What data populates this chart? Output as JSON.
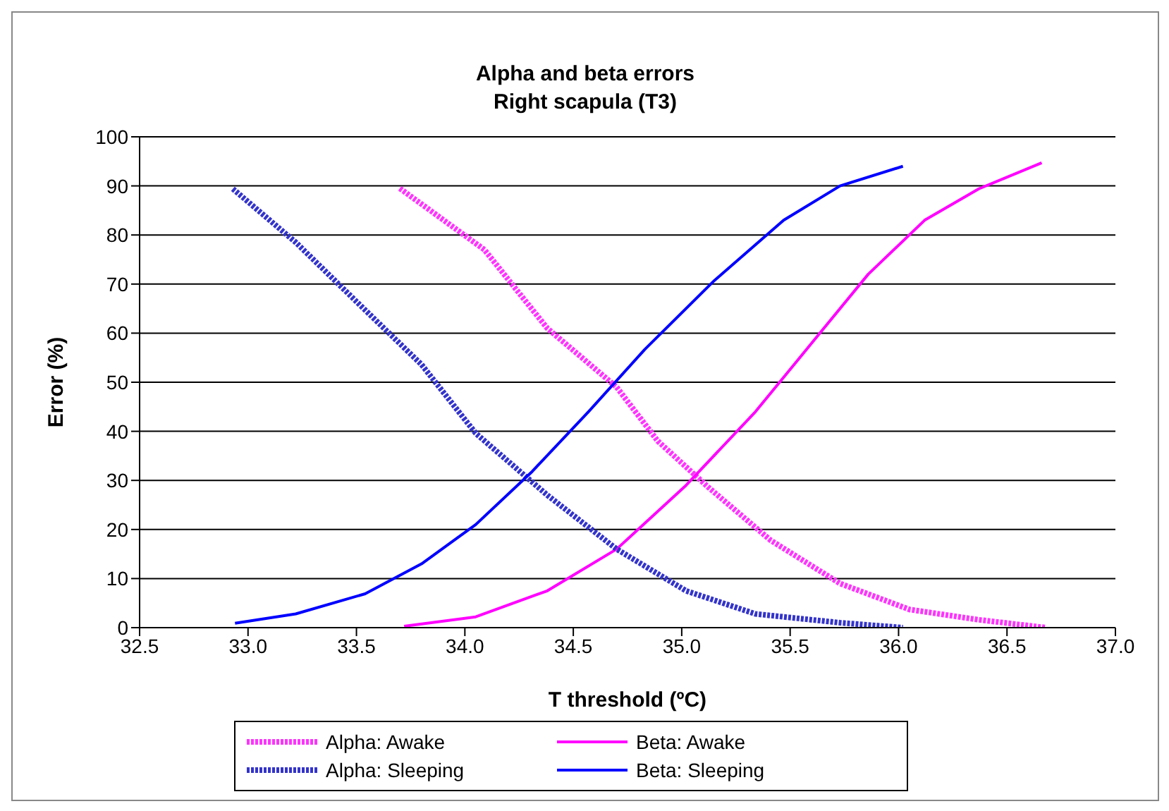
{
  "chart_data": {
    "type": "line",
    "title": "Alpha and beta errors",
    "subtitle": "Right scapula (T3)",
    "xlabel": "T threshold (ºC)",
    "ylabel": "Error (%)",
    "xlim": [
      32.5,
      37.0
    ],
    "xticks": [
      32.5,
      {
        "value": 33,
        "label": "33.0"
      },
      33.5,
      {
        "value": 34,
        "label": "34.0"
      },
      34.5,
      {
        "value": 35,
        "label": "35.0"
      },
      35.5,
      {
        "value": 36,
        "label": "36.0"
      },
      36.5,
      {
        "value": 37,
        "label": "37.0"
      }
    ],
    "ylim": [
      0,
      100
    ],
    "yticks": [
      0,
      10,
      20,
      30,
      40,
      50,
      60,
      70,
      80,
      90,
      100
    ],
    "grid": "y",
    "legend": "bottom",
    "marker": "none",
    "series": [
      {
        "name": "Alpha: Awake",
        "color": "#ff33ff",
        "line_style": "dotted",
        "x": [
          33.7,
          34.09,
          34.38,
          34.7,
          34.89,
          35.12,
          35.41,
          35.73,
          36.05,
          36.37,
          36.68
        ],
        "values": [
          89.5,
          77,
          61,
          49,
          38,
          28.7,
          17.8,
          9,
          3.7,
          1.6,
          0
        ]
      },
      {
        "name": "Beta: Awake",
        "color": "#ff00ff",
        "line_style": "solid",
        "x": [
          33.72,
          34.05,
          34.38,
          34.7,
          35.02,
          35.34,
          35.6,
          35.86,
          36.12,
          36.37,
          36.66
        ],
        "values": [
          0.3,
          2.2,
          7.5,
          16,
          29,
          44,
          58,
          72,
          83,
          89.4,
          94.7
        ]
      },
      {
        "name": "Alpha: Sleeping",
        "color": "#3333cc",
        "line_style": "dotted",
        "x": [
          32.93,
          33.22,
          33.51,
          33.8,
          34.05,
          34.38,
          34.7,
          35.02,
          35.34,
          35.73,
          36.02
        ],
        "values": [
          89.4,
          78.5,
          66,
          53.6,
          39.6,
          27,
          16,
          7.5,
          2.8,
          1,
          0
        ]
      },
      {
        "name": "Beta: Sleeping",
        "color": "#0000ff",
        "line_style": "solid",
        "x": [
          32.94,
          33.22,
          33.54,
          33.8,
          34.05,
          34.31,
          34.57,
          34.83,
          35.15,
          35.47,
          35.73,
          36.02
        ],
        "values": [
          0.9,
          2.8,
          6.9,
          13,
          21,
          31.8,
          44,
          56.7,
          70.7,
          83,
          90,
          94
        ]
      }
    ]
  }
}
